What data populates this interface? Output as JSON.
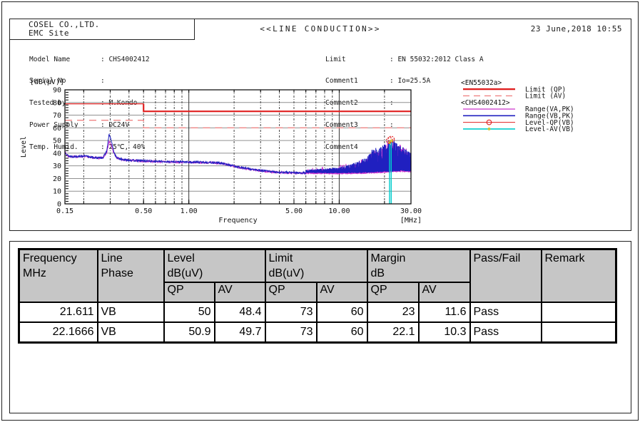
{
  "report": {
    "company": "COSEL CO.,LTD.",
    "site": "EMC Site",
    "title": "<<LINE CONDUCTION>>",
    "datetime": "23 June,2018 10:55",
    "info_left": [
      {
        "label": "Model Name",
        "value": "CHS4002412"
      },
      {
        "label": "Serial No",
        "value": ""
      },
      {
        "label": "Tested by",
        "value": "M.Kondo"
      },
      {
        "label": "Power Supply",
        "value": "DC24V"
      },
      {
        "label": "Temp. Humid.",
        "value": "25℃, 40%"
      }
    ],
    "info_right": [
      {
        "label": "Limit",
        "value": "EN 55032:2012 Class A"
      },
      {
        "label": "Comment1",
        "value": "Io=25.5A"
      },
      {
        "label": "Comment2",
        "value": ""
      },
      {
        "label": "Comment3",
        "value": ""
      },
      {
        "label": "Comment4",
        "value": ""
      }
    ]
  },
  "chart_data": {
    "type": "line",
    "x_axis": {
      "label": "Frequency",
      "unit": "[MHz]",
      "scale": "log",
      "min": 0.15,
      "max": 30,
      "ticks": [
        {
          "f": 0.15,
          "label": "0.15"
        },
        {
          "f": 0.5,
          "label": "0.50"
        },
        {
          "f": 1,
          "label": "1.00"
        },
        {
          "f": 5,
          "label": "5.00"
        },
        {
          "f": 10,
          "label": "10.00"
        },
        {
          "f": 30,
          "label": "30.00"
        }
      ],
      "gridlines": [
        0.2,
        0.3,
        0.4,
        0.5,
        0.6,
        0.7,
        0.8,
        0.9,
        2,
        3,
        4,
        5,
        6,
        7,
        8,
        9,
        20
      ],
      "solid_gridlines": [
        1,
        10
      ]
    },
    "y_axis": {
      "label": "Level",
      "unit": "[dB(µV)]",
      "min": 0,
      "max": 90,
      "tick_step": 10,
      "minor_step": 2
    },
    "limit_qp": [
      [
        0.15,
        79
      ],
      [
        0.5,
        79
      ],
      [
        0.5,
        73
      ],
      [
        30,
        73
      ]
    ],
    "limit_av": [
      [
        0.15,
        66
      ],
      [
        0.5,
        66
      ],
      [
        0.5,
        60
      ],
      [
        30,
        60
      ]
    ],
    "envelope_vb_pk_low": [
      [
        0.15,
        41
      ],
      [
        0.158,
        37.8
      ],
      [
        0.17,
        37.3
      ],
      [
        0.2,
        37.8
      ],
      [
        0.22,
        37
      ],
      [
        0.25,
        36.2
      ],
      [
        0.27,
        36.8
      ],
      [
        0.285,
        42
      ],
      [
        0.295,
        55
      ],
      [
        0.305,
        50
      ],
      [
        0.315,
        42
      ],
      [
        0.33,
        36.5
      ],
      [
        0.36,
        35
      ],
      [
        0.4,
        34.5
      ],
      [
        0.45,
        34.2
      ],
      [
        0.5,
        34
      ],
      [
        0.6,
        33.6
      ],
      [
        0.8,
        33.2
      ],
      [
        1,
        33
      ],
      [
        1.3,
        32.8
      ],
      [
        1.6,
        32.3
      ],
      [
        1.9,
        30.5
      ],
      [
        2.2,
        28.8
      ],
      [
        2.6,
        27.3
      ],
      [
        3,
        26.3
      ],
      [
        3.5,
        25.5
      ],
      [
        4,
        25
      ],
      [
        5,
        24.6
      ],
      [
        6,
        24.4
      ]
    ],
    "envelope_vb_pk_high": [
      [
        6,
        27
      ],
      [
        7,
        27.5
      ],
      [
        8,
        28
      ],
      [
        9,
        28.5
      ],
      [
        10,
        29
      ],
      [
        11,
        30
      ],
      [
        12,
        31.5
      ],
      [
        13,
        33
      ],
      [
        14,
        35
      ],
      [
        15,
        36.5
      ],
      [
        16,
        39.5
      ],
      [
        16.6,
        44
      ],
      [
        17,
        42
      ],
      [
        17.3,
        47
      ],
      [
        17.8,
        41.5
      ],
      [
        18.3,
        43
      ],
      [
        19,
        45
      ],
      [
        20,
        47.5
      ],
      [
        21,
        49.5
      ],
      [
        21.6,
        50.5
      ],
      [
        22.2,
        50.9
      ],
      [
        23,
        50
      ],
      [
        24,
        48.5
      ],
      [
        25,
        47
      ],
      [
        26,
        45.5
      ],
      [
        27,
        44
      ],
      [
        28,
        42.5
      ],
      [
        30,
        40.5
      ]
    ],
    "envelope_va_pk_low": [
      [
        0.15,
        40.5
      ],
      [
        0.158,
        37.5
      ],
      [
        0.17,
        37
      ],
      [
        0.2,
        37.5
      ],
      [
        0.22,
        36.7
      ],
      [
        0.25,
        36
      ],
      [
        0.27,
        36.5
      ],
      [
        0.285,
        41
      ],
      [
        0.295,
        49.5
      ],
      [
        0.305,
        46
      ],
      [
        0.315,
        41
      ],
      [
        0.33,
        36.2
      ],
      [
        0.36,
        34.8
      ],
      [
        0.4,
        34.3
      ],
      [
        0.45,
        34
      ],
      [
        0.5,
        33.8
      ],
      [
        0.6,
        33.4
      ],
      [
        0.8,
        33
      ],
      [
        1,
        32.8
      ],
      [
        1.3,
        32.6
      ],
      [
        1.6,
        32.1
      ],
      [
        1.9,
        30.3
      ],
      [
        2.2,
        28.6
      ],
      [
        2.6,
        27.1
      ],
      [
        3,
        26.1
      ],
      [
        3.5,
        25.3
      ],
      [
        4,
        24.8
      ],
      [
        5,
        24.4
      ],
      [
        6,
        24.2
      ]
    ],
    "envelope_va_pk_high": [
      [
        6,
        26.5
      ],
      [
        7,
        27
      ],
      [
        8,
        27.5
      ],
      [
        9,
        28
      ],
      [
        10,
        28.3
      ],
      [
        11,
        29
      ],
      [
        12,
        30
      ],
      [
        13,
        31.5
      ],
      [
        14,
        33
      ],
      [
        15,
        34.5
      ],
      [
        16,
        37.5
      ],
      [
        16.6,
        42
      ],
      [
        17,
        40
      ],
      [
        17.3,
        47.8
      ],
      [
        17.8,
        40
      ],
      [
        18.3,
        41
      ],
      [
        19,
        43
      ],
      [
        20,
        45.5
      ],
      [
        21,
        47.5
      ],
      [
        21.6,
        48.5
      ],
      [
        22.2,
        48.8
      ],
      [
        23,
        48
      ],
      [
        24,
        46.5
      ],
      [
        25,
        45
      ],
      [
        26,
        43.5
      ],
      [
        27,
        42
      ],
      [
        28,
        41
      ],
      [
        30,
        39
      ]
    ],
    "baseline_hf": [
      [
        6,
        24.2
      ],
      [
        10,
        24
      ],
      [
        14,
        24.3
      ],
      [
        18,
        24.8
      ],
      [
        21,
        25.3
      ],
      [
        24,
        25.6
      ],
      [
        27,
        25.8
      ],
      [
        30,
        25.5
      ]
    ],
    "markers": [
      {
        "freq": 21.611,
        "qp": 50,
        "av": 48.4
      },
      {
        "freq": 22.1666,
        "qp": 50.9,
        "av": 49.7
      }
    ],
    "legend": {
      "groups": [
        {
          "header": "<EN55032a>",
          "items": [
            {
              "swatch": "limit-qp",
              "label": "Limit (QP)"
            },
            {
              "swatch": "limit-av",
              "label": "Limit (AV)"
            }
          ]
        },
        {
          "header": "<CHS4002412>",
          "items": [
            {
              "swatch": "range-va",
              "label": "Range(VA,PK)"
            },
            {
              "swatch": "range-vb",
              "label": "Range(VB,PK)"
            },
            {
              "swatch": "level-qp",
              "label": "Level-QP(VB)"
            },
            {
              "swatch": "level-av",
              "label": "Level-AV(VB)"
            }
          ]
        }
      ]
    },
    "colors": {
      "limit_qp": "#e02020",
      "limit_av": "#ef8585",
      "range_va": "#cc33cc",
      "range_vb": "#2020c0",
      "level_qp": "#e02020",
      "level_av": "#00cccc",
      "marker_dot": "#cfc53a",
      "h_grid": "#909090",
      "v_grid": "#444444",
      "axis": "#000000"
    }
  },
  "table": {
    "col_frequency": {
      "line1": "Frequency",
      "line2": "MHz"
    },
    "col_line": {
      "line1": "Line",
      "line2": "Phase"
    },
    "col_level": {
      "line1": "Level",
      "line2": "dB(uV)"
    },
    "col_limit": {
      "line1": "Limit",
      "line2": "dB(uV)"
    },
    "col_margin": {
      "line1": "Margin",
      "line2": "dB"
    },
    "col_pass": "Pass/Fail",
    "col_remark": "Remark",
    "sub_qp": "QP",
    "sub_av": "AV",
    "rows": [
      {
        "freq": "21.611",
        "phase": "VB",
        "level_qp": "50",
        "level_av": "48.4",
        "limit_qp": "73",
        "limit_av": "60",
        "margin_qp": "23",
        "margin_av": "11.6",
        "result": "Pass",
        "remark": ""
      },
      {
        "freq": "22.1666",
        "phase": "VB",
        "level_qp": "50.9",
        "level_av": "49.7",
        "limit_qp": "73",
        "limit_av": "60",
        "margin_qp": "22.1",
        "margin_av": "10.3",
        "result": "Pass",
        "remark": ""
      }
    ]
  }
}
